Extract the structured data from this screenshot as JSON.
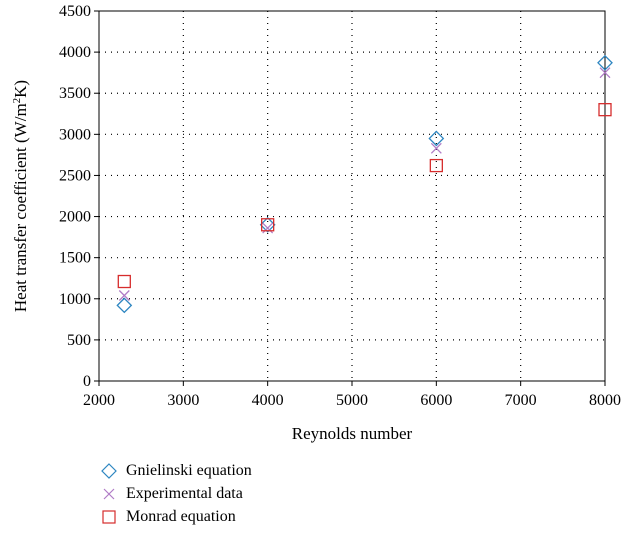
{
  "chart_data": {
    "type": "scatter",
    "title": "",
    "xlabel": "Reynolds number",
    "ylabel": "Heat transfer coefficient (W/m²K)",
    "ylabel_parts": {
      "before": "Heat transfer coefficient (W/m",
      "sup": "2",
      "after": "K)"
    },
    "xlim": [
      2000,
      8000
    ],
    "ylim": [
      0,
      4500
    ],
    "xticks": [
      2000,
      3000,
      4000,
      5000,
      6000,
      7000,
      8000
    ],
    "yticks": [
      0,
      500,
      1000,
      1500,
      2000,
      2500,
      3000,
      3500,
      4000,
      4500
    ],
    "grid": true,
    "legend_position": "bottom-left below plot",
    "series": [
      {
        "name": "Gnielinski equation",
        "marker": "diamond",
        "color": "#2e86c1",
        "x": [
          2300,
          4000,
          6000,
          8000
        ],
        "y": [
          920,
          1900,
          2950,
          3870
        ]
      },
      {
        "name": "Experimental data",
        "marker": "x",
        "color": "#b07cc6",
        "x": [
          2300,
          4000,
          6000,
          8000
        ],
        "y": [
          1040,
          1860,
          2830,
          3750
        ]
      },
      {
        "name": "Monrad equation",
        "marker": "square",
        "color": "#d62c2c",
        "x": [
          2300,
          4000,
          6000,
          8000
        ],
        "y": [
          1210,
          1900,
          2620,
          3300
        ]
      }
    ]
  }
}
